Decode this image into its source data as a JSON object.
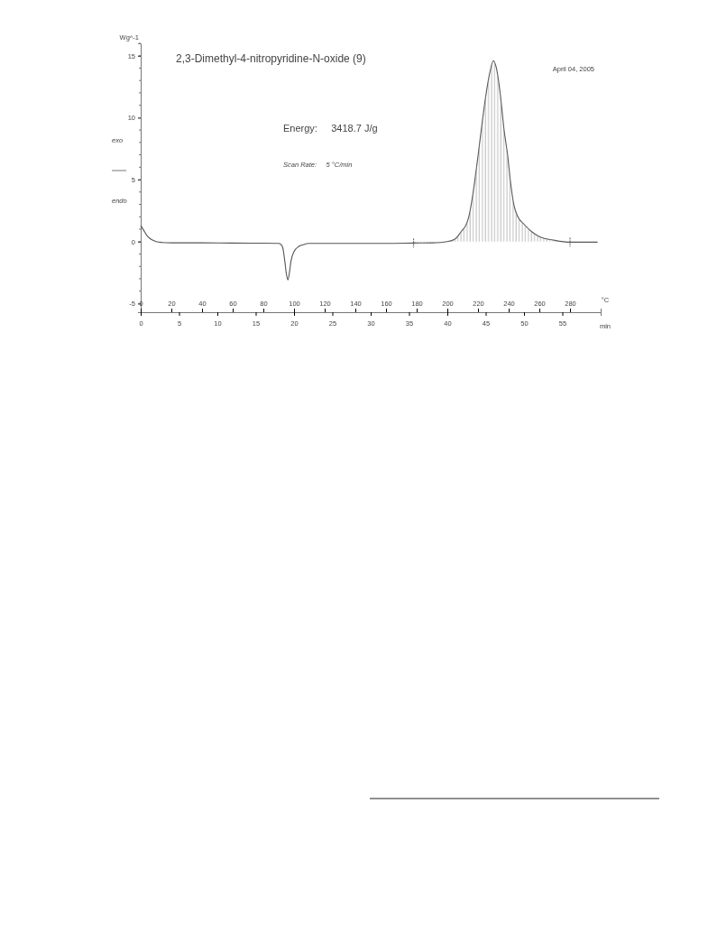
{
  "chart_data": {
    "type": "line",
    "title": "2,3-Dimethyl-4-nitropyridine-N-oxide (9)",
    "ylabel": "Wg^-1",
    "xlabel": "°C",
    "x2label": "min",
    "annotations": [
      "April 04, 2005",
      "Energy:     3418.7 J/g",
      "Scan Rate:     5 °C/min",
      "exo",
      "endo"
    ],
    "xlim": [
      0,
      300
    ],
    "xticks": [
      0,
      20,
      40,
      60,
      80,
      100,
      120,
      140,
      160,
      180,
      200,
      220,
      240,
      260,
      280
    ],
    "x2lim": [
      0,
      60
    ],
    "x2ticks": [
      0,
      5,
      10,
      15,
      20,
      25,
      30,
      35,
      40,
      45,
      50,
      55
    ],
    "ylim": [
      -5.7,
      16
    ],
    "yticks": [
      -5,
      0,
      5,
      10,
      15
    ],
    "series": [
      {
        "color": "#555555",
        "x": [
          0,
          2,
          4,
          6,
          8,
          10,
          14,
          20,
          40,
          60,
          80,
          90,
          92,
          93,
          94,
          95,
          96,
          97,
          98,
          100,
          103,
          106,
          110,
          130,
          160,
          178,
          190,
          200,
          205,
          209,
          212,
          214,
          216,
          218,
          220,
          222,
          225,
          228,
          230,
          232,
          234.7,
          237,
          239.4,
          241,
          243.5,
          246,
          250,
          255,
          260,
          270,
          280,
          290,
          298
        ],
        "values": [
          1.3,
          0.9,
          0.5,
          0.25,
          0.1,
          0,
          -0.07,
          -0.1,
          -0.1,
          -0.12,
          -0.13,
          -0.15,
          -0.3,
          -0.7,
          -1.6,
          -2.6,
          -3.1,
          -2.5,
          -1.6,
          -0.8,
          -0.4,
          -0.25,
          -0.15,
          -0.15,
          -0.15,
          -0.12,
          -0.1,
          0,
          0.2,
          0.8,
          1.3,
          2.0,
          3.3,
          5.0,
          6.9,
          8.9,
          11.7,
          13.8,
          14.6,
          14.0,
          11.7,
          9.0,
          6.9,
          5.0,
          2.9,
          2.0,
          1.4,
          0.8,
          0.4,
          0.1,
          -0.05,
          -0.05,
          -0.05
        ]
      },
      {
        "type": "area",
        "color": "#999999",
        "x": [
          178,
          190,
          200,
          205,
          209,
          212,
          214,
          216,
          218,
          220,
          222,
          225,
          228,
          230,
          232,
          234.7,
          237,
          239.4,
          241,
          243.5,
          246,
          250,
          255,
          260,
          270,
          280
        ],
        "values": [
          -0.12,
          -0.1,
          0,
          0.2,
          0.8,
          1.3,
          2.0,
          3.3,
          5.0,
          6.9,
          8.9,
          11.7,
          13.8,
          14.6,
          14.0,
          11.7,
          9.0,
          6.9,
          5.0,
          2.9,
          2.0,
          1.4,
          0.8,
          0.4,
          0.1,
          -0.05
        ]
      }
    ]
  }
}
